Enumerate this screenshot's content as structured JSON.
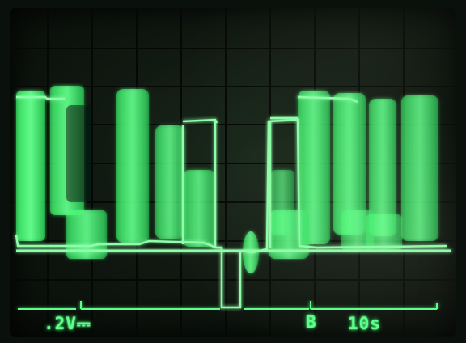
{
  "oscilloscope": {
    "volts_per_div": ".2V⎓",
    "channel_marker": "B",
    "time_per_div": "10s"
  },
  "colors": {
    "trace": "#5dff8a",
    "trace_glow": "#2aff66",
    "graticule": "#0d1f10",
    "screen": "#111a12"
  }
}
